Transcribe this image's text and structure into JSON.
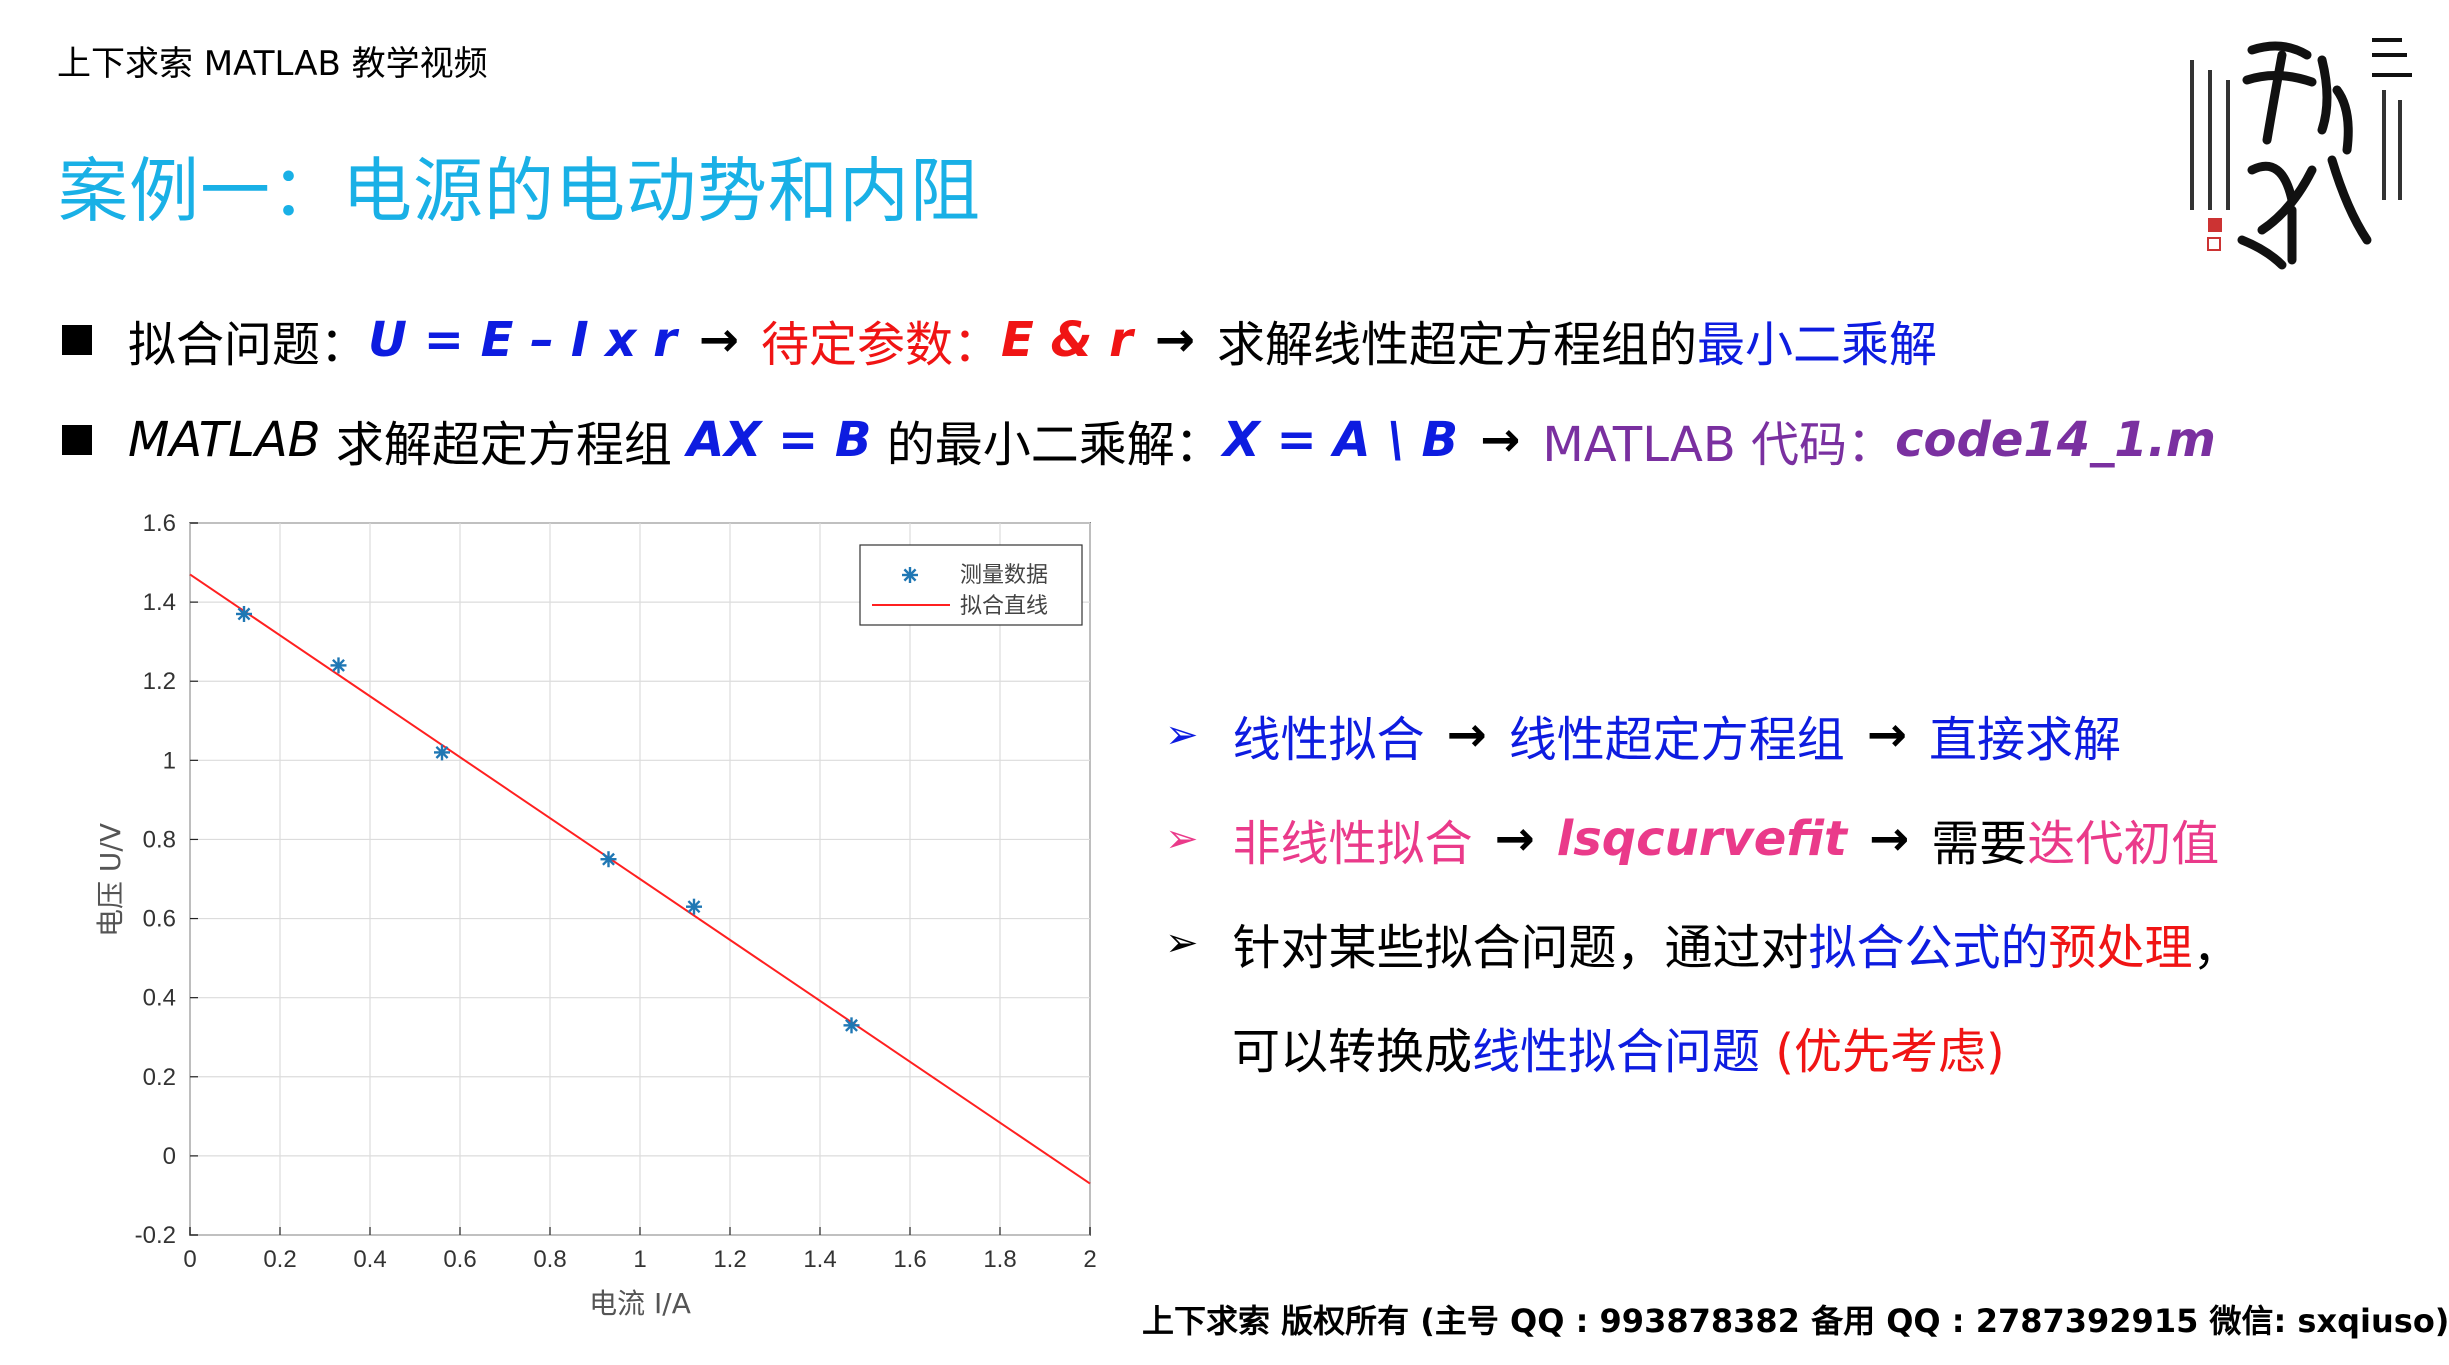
{
  "header": {
    "label": "上下求索 MATLAB 教学视频"
  },
  "title": "案例一：电源的电动势和内阻",
  "bullets": {
    "line1": {
      "prefix": "拟合问题：",
      "formula": "U = E – I x r",
      "arrow1": "→",
      "param_label": "待定参数：",
      "params": "E & r",
      "arrow2": "→",
      "text": "求解线性超定方程组的",
      "highlight": "最小二乘解"
    },
    "line2": {
      "matlab": "MATLAB",
      "text1": " 求解超定方程组 ",
      "eq": "AX = B",
      "text2": " 的最小二乘解：",
      "sol": "X = A \\ B",
      "arrow": "→",
      "code_label": "MATLAB 代码：",
      "code_file": "code14_1.m"
    }
  },
  "right_list": {
    "item1": {
      "a": "线性拟合",
      "arrow1": "→",
      "b": "线性超定方程组",
      "arrow2": "→",
      "c": "直接求解"
    },
    "item2": {
      "a": "非线性拟合",
      "arrow1": "→",
      "b": "lsqcurvefit",
      "arrow2": "→",
      "c": "需要",
      "d": "迭代初值"
    },
    "item3": {
      "a": "针对某些拟合问题，通过对",
      "b": "拟合公式的",
      "c": "预处理",
      "d": "，"
    },
    "item4": {
      "a": "可以转换成",
      "b": "线性拟合问题",
      "c": " (优先考虑)"
    }
  },
  "footer": "上下求索  版权所有  (主号 QQ : 993878382   备用 QQ : 2787392915   微信: sxqiuso)",
  "colors": {
    "title": "#19b0e6",
    "blue": "#0d1ce0",
    "red": "#f01414",
    "purple": "#7a30a0",
    "pink": "#ea3a8a",
    "series": "#1f77b4",
    "fit": "#ff2020"
  },
  "chart_data": {
    "type": "scatter",
    "xlabel": "电流 I/A",
    "ylabel": "电压 U/V",
    "xlim": [
      0,
      2
    ],
    "ylim": [
      -0.2,
      1.6
    ],
    "xticks": [
      0,
      0.2,
      0.4,
      0.6,
      0.8,
      1,
      1.2,
      1.4,
      1.6,
      1.8,
      2
    ],
    "yticks": [
      -0.2,
      0,
      0.2,
      0.4,
      0.6,
      0.8,
      1,
      1.2,
      1.4,
      1.6
    ],
    "grid": true,
    "legend_position": "top-right",
    "series": [
      {
        "name": "测量数据",
        "marker": "*",
        "x": [
          0.12,
          0.33,
          0.56,
          0.93,
          1.12,
          1.47
        ],
        "y": [
          1.37,
          1.24,
          1.02,
          0.75,
          0.63,
          0.33
        ]
      },
      {
        "name": "拟合直线",
        "style": "line",
        "x": [
          0,
          2
        ],
        "y": [
          1.47,
          -0.07
        ]
      }
    ]
  }
}
